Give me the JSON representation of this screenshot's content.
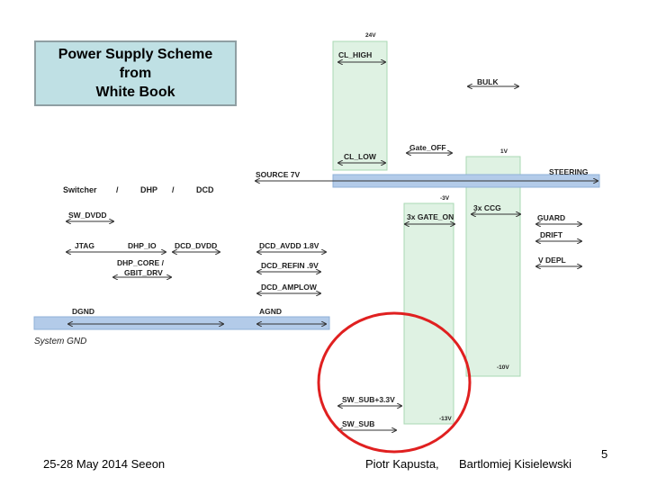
{
  "title_box": {
    "lines": [
      "Power Supply Scheme",
      "from",
      "White Book"
    ]
  },
  "voltages": {
    "v_24": "24V",
    "v_1": "1V",
    "v_m3": "-3V",
    "v_m10": "-10V",
    "v_m13": "-13V"
  },
  "header": {
    "switcher": "Switcher",
    "sep1": "/",
    "dhp": "DHP",
    "sep2": "/",
    "dcd": "DCD"
  },
  "signals": {
    "cl_high": "CL_HIGH",
    "bulk": "BULK",
    "gate_off": "Gate_OFF",
    "cl_low": "CL_LOW",
    "source_7v": "SOURCE 7V",
    "steering": "STEERING",
    "sw_dvdd": "SW_DVDD",
    "gate_on": "3x GATE_ON",
    "ccg": "3x CCG",
    "guard": "GUARD",
    "drift": "DRIFT",
    "v_depl": "V DEPL",
    "jtag": "JTAG",
    "dhp_io": "DHP_IO",
    "dcd_dvdd": "DCD_DVDD",
    "dcd_avdd": "DCD_AVDD 1.8V",
    "dhp_core": "DHP_CORE  /",
    "gbit_drv": "GBIT_DRV",
    "dcd_refin": "DCD_REFIN .9V",
    "dcd_amplow": "DCD_AMPLOW",
    "dgnd": "DGND",
    "agnd": "AGND",
    "system_gnd": "System GND",
    "sw_sub_33": "SW_SUB+3.3V",
    "sw_sub": "SW_SUB"
  },
  "footer": {
    "date_place": "25-28 May 2014 Seeon",
    "author1": "Piotr Kapusta,",
    "author2": "Bartlomiej Kisielewski",
    "page_number": "5"
  },
  "colors": {
    "green_rail": "#dff2e3",
    "blue_rail": "#b3cbe9",
    "highlight_circle": "#e02020",
    "title_box_fill": "#bfe0e4"
  }
}
